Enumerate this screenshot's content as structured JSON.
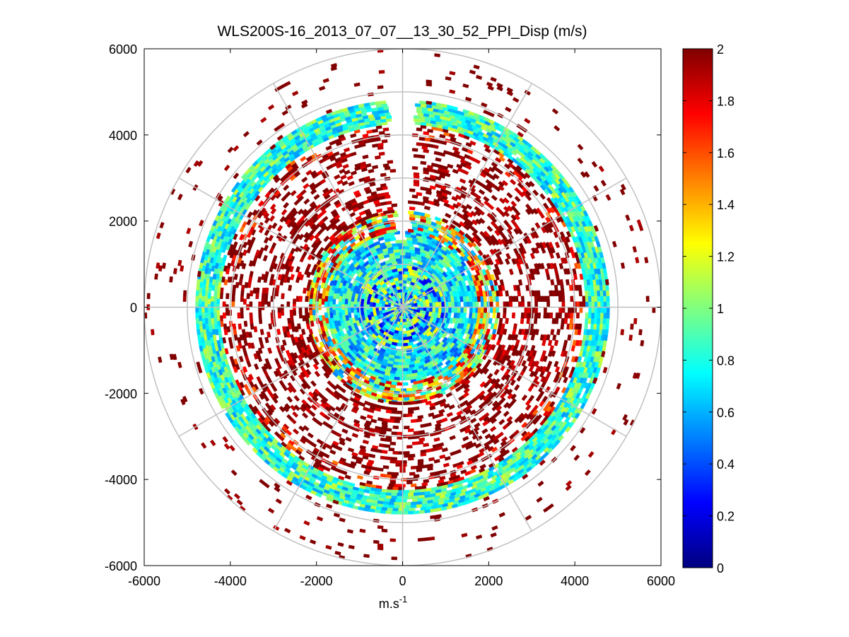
{
  "chart_data": {
    "type": "heatmap",
    "subtype": "polar-ppi-scan",
    "title": "WLS200S-16_2013_07_07__13_30_52_PPI_Disp (m/s)",
    "xlabel_base": "m.s",
    "xlabel_sup": "-1",
    "ylabel": "",
    "xlim": [
      -6000,
      6000
    ],
    "ylim": [
      -6000,
      6000
    ],
    "xticks": [
      -6000,
      -4000,
      -2000,
      0,
      2000,
      4000,
      6000
    ],
    "xtick_labels": [
      "-6000",
      "-4000",
      "-2000",
      "0",
      "2000",
      "4000",
      "6000"
    ],
    "yticks": [
      6000,
      4000,
      2000,
      0,
      -2000,
      -4000,
      -6000
    ],
    "ytick_labels": [
      "6000",
      "4000",
      "2000",
      "0",
      "-2000",
      "-4000",
      "-6000"
    ],
    "polar_grid": {
      "ring_radii": [
        1000,
        2000,
        3000,
        4000,
        5000,
        6000
      ],
      "spoke_angles_deg": [
        0,
        30,
        60,
        90,
        120,
        150,
        180,
        210,
        240,
        270,
        300,
        330
      ]
    },
    "colorbar": {
      "colormap": "jet",
      "range": [
        0,
        2
      ],
      "ticks": [
        2,
        1.8,
        1.6,
        1.4,
        1.2,
        1,
        0.8,
        0.6,
        0.4,
        0.2,
        0
      ],
      "tick_labels": [
        "2",
        "1.8",
        "1.6",
        "1.4",
        "1.2",
        "1",
        "0.8",
        "0.6",
        "0.4",
        "0.2",
        "0"
      ]
    },
    "colors": {
      "grid": "#c0c0c0",
      "axes": "#000000",
      "saturated": "#800000"
    },
    "bands": [
      {
        "r_min": 0,
        "r_max": 1000,
        "mean": 0.75,
        "spread": 0.55,
        "coverage": 0.98
      },
      {
        "r_min": 1000,
        "r_max": 1750,
        "mean": 0.75,
        "spread": 0.35,
        "coverage": 0.95
      },
      {
        "r_min": 1750,
        "r_max": 2200,
        "mean": 1.25,
        "spread": 0.75,
        "coverage": 0.85
      },
      {
        "r_min": 2200,
        "r_max": 3000,
        "mean": 2.0,
        "spread": 0.25,
        "coverage": 0.45
      },
      {
        "r_min": 3000,
        "r_max": 3900,
        "mean": 2.0,
        "spread": 0.2,
        "coverage": 0.35
      },
      {
        "r_min": 3900,
        "r_max": 4250,
        "mean": 2.0,
        "spread": 0.5,
        "coverage": 0.45
      },
      {
        "r_min": 4250,
        "r_max": 4750,
        "mean": 0.85,
        "spread": 0.3,
        "coverage": 0.97
      },
      {
        "r_min": 4750,
        "r_max": 6000,
        "mean": 2.0,
        "spread": 0.1,
        "coverage": 0.05
      }
    ],
    "gap_sector_deg": [
      -4,
      4
    ]
  }
}
